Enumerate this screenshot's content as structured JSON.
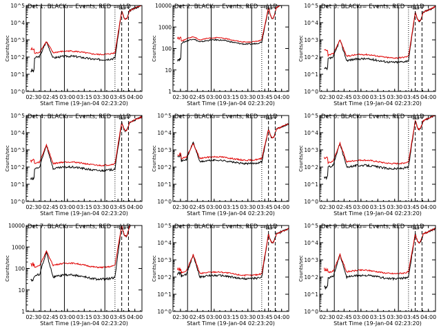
{
  "chart_data": [
    {
      "type": "line",
      "title": "Det 1: BLACK = Events, RED = LLD",
      "xlabel": "Start Time (19-Jan-04 02:23:20)",
      "ylabel": "Counts/sec",
      "x_ticks": [
        "02:30",
        "02:45",
        "03:00",
        "03:15",
        "03:30",
        "03:45",
        "04:00"
      ],
      "y_ticks": [
        "10^0",
        "10^1",
        "10^2",
        "10^3",
        "10^4",
        "10^5"
      ],
      "ylim_log10": [
        0,
        5
      ],
      "markers": [
        "solid",
        "solid",
        "solid",
        "dotted",
        "dashed",
        "dashed"
      ],
      "series": [
        {
          "color": "#000000",
          "shape": {
            "start": 1.2,
            "plateau": 2.05,
            "bump": 2.9,
            "tail": 1.95,
            "flare": 4.7,
            "jitter": 0.06
          }
        },
        {
          "color": "#e00000",
          "shape": {
            "start": 2.45,
            "plateau": 2.3,
            "bump": 2.9,
            "tail": 2.25,
            "flare": 4.7,
            "jitter": 0.04
          }
        }
      ]
    },
    {
      "type": "line",
      "title": "Det 2: BLACK = Events, RED = LLD",
      "xlabel": "Start Time (19-Jan-04 02:23:20)",
      "ylabel": "Counts/sec",
      "x_ticks": [
        "02:30",
        "02:45",
        "03:00",
        "03:15",
        "03:30",
        "03:45",
        "04:00"
      ],
      "y_ticks": [
        "1",
        "10",
        "100",
        "1000",
        "10000"
      ],
      "ylim_log10": [
        0,
        4
      ],
      "markers": [
        "solid",
        "solid",
        "solid",
        "dotted",
        "dashed",
        "dashed"
      ],
      "series": [
        {
          "color": "#000000",
          "shape": {
            "start": 1.5,
            "plateau": 2.35,
            "bump": 2.45,
            "tail": 2.3,
            "flare": 3.9,
            "jitter": 0.03
          }
        },
        {
          "color": "#e00000",
          "shape": {
            "start": 2.5,
            "plateau": 2.45,
            "bump": 2.55,
            "tail": 2.4,
            "flare": 3.9,
            "jitter": 0.02
          }
        }
      ]
    },
    {
      "type": "line",
      "title": "Det 3: BLACK = Events, RED = LLD",
      "xlabel": "Start Time (19-Jan-04 02:23:20)",
      "ylabel": "Counts/sec",
      "x_ticks": [
        "02:30",
        "02:45",
        "03:00",
        "03:15",
        "03:30",
        "03:45",
        "04:00"
      ],
      "y_ticks": [
        "10^0",
        "10^1",
        "10^2",
        "10^3",
        "10^4",
        "10^5"
      ],
      "ylim_log10": [
        0,
        5
      ],
      "markers": [
        "solid",
        "solid",
        "solid",
        "dotted",
        "dashed",
        "dashed"
      ],
      "series": [
        {
          "color": "#000000",
          "shape": {
            "start": 1.3,
            "plateau": 2.0,
            "bump": 3.0,
            "tail": 1.8,
            "flare": 4.6,
            "jitter": 0.06
          }
        },
        {
          "color": "#e00000",
          "shape": {
            "start": 2.35,
            "plateau": 2.2,
            "bump": 3.0,
            "tail": 2.05,
            "flare": 4.6,
            "jitter": 0.04
          }
        }
      ]
    },
    {
      "type": "line",
      "title": "Det 4: BLACK = Events, RED = LLD",
      "xlabel": "Start Time (19-Jan-04 02:23:20)",
      "ylabel": "Counts/sec",
      "x_ticks": [
        "02:30",
        "02:45",
        "03:00",
        "03:15",
        "03:30",
        "03:45",
        "04:00"
      ],
      "y_ticks": [
        "10^0",
        "10^1",
        "10^2",
        "10^3",
        "10^4",
        "10^5"
      ],
      "ylim_log10": [
        0,
        5
      ],
      "markers": [
        "solid",
        "solid",
        "solid",
        "dotted",
        "dashed",
        "dashed"
      ],
      "series": [
        {
          "color": "#000000",
          "shape": {
            "start": 1.3,
            "plateau": 2.0,
            "bump": 3.3,
            "tail": 1.9,
            "flare": 4.6,
            "jitter": 0.06
          }
        },
        {
          "color": "#e00000",
          "shape": {
            "start": 2.4,
            "plateau": 2.3,
            "bump": 3.3,
            "tail": 2.2,
            "flare": 4.6,
            "jitter": 0.04
          }
        }
      ]
    },
    {
      "type": "line",
      "title": "Det 5: BLACK = Events, RED = LLD",
      "xlabel": "Start Time (19-Jan-04 02:23:20)",
      "ylabel": "Counts/sec",
      "x_ticks": [
        "02:30",
        "02:45",
        "03:00",
        "03:15",
        "03:30",
        "03:45",
        "04:00"
      ],
      "y_ticks": [
        "10^0",
        "10^1",
        "10^2",
        "10^3",
        "10^4",
        "10^5"
      ],
      "ylim_log10": [
        0,
        5
      ],
      "markers": [
        "solid",
        "solid",
        "solid",
        "dotted",
        "dashed",
        "dashed"
      ],
      "series": [
        {
          "color": "#000000",
          "shape": {
            "start": 2.7,
            "plateau": 2.45,
            "bump": 3.45,
            "tail": 2.3,
            "flare": 4.2,
            "jitter": 0.05
          }
        },
        {
          "color": "#e00000",
          "shape": {
            "start": 2.75,
            "plateau": 2.6,
            "bump": 3.35,
            "tail": 2.5,
            "flare": 4.2,
            "jitter": 0.04
          }
        }
      ]
    },
    {
      "type": "line",
      "title": "Det 6: BLACK = Events, RED = LLD",
      "xlabel": "Start Time (19-Jan-04 02:23:20)",
      "ylabel": "Counts/sec",
      "x_ticks": [
        "02:30",
        "02:45",
        "03:00",
        "03:15",
        "03:30",
        "03:45",
        "04:00"
      ],
      "y_ticks": [
        "10^0",
        "10^1",
        "10^2",
        "10^3",
        "10^4",
        "10^5"
      ],
      "ylim_log10": [
        0,
        5
      ],
      "markers": [
        "solid",
        "solid",
        "solid",
        "dotted",
        "dashed",
        "dashed"
      ],
      "series": [
        {
          "color": "#000000",
          "shape": {
            "start": 1.4,
            "plateau": 2.1,
            "bump": 3.4,
            "tail": 2.0,
            "flare": 4.7,
            "jitter": 0.06
          }
        },
        {
          "color": "#e00000",
          "shape": {
            "start": 2.5,
            "plateau": 2.35,
            "bump": 3.4,
            "tail": 2.3,
            "flare": 4.7,
            "jitter": 0.04
          }
        }
      ]
    },
    {
      "type": "line",
      "title": "Det 7: BLACK = Events, RED = LLD",
      "xlabel": "Start Time (19-Jan-04 02:23:20)",
      "ylabel": "Counts/sec",
      "x_ticks": [
        "02:30",
        "02:45",
        "03:00",
        "03:15",
        "03:30",
        "03:45",
        "04:00"
      ],
      "y_ticks": [
        "1",
        "10",
        "100",
        "1000",
        "10000"
      ],
      "ylim_log10": [
        0,
        4
      ],
      "markers": [
        "solid",
        "solid",
        "solid",
        "dotted",
        "dashed",
        "dashed"
      ],
      "series": [
        {
          "color": "#000000",
          "shape": {
            "start": 1.5,
            "plateau": 1.75,
            "bump": 2.75,
            "tail": 1.6,
            "flare": 4.0,
            "jitter": 0.05
          }
        },
        {
          "color": "#e00000",
          "shape": {
            "start": 2.2,
            "plateau": 2.15,
            "bump": 2.8,
            "tail": 2.15,
            "flare": 4.0,
            "jitter": 0.03
          }
        }
      ]
    },
    {
      "type": "line",
      "title": "Det 8: BLACK = Events, RED = LLD",
      "xlabel": "Start Time (19-Jan-04 02:23:20)",
      "ylabel": "Counts/sec",
      "x_ticks": [
        "02:30",
        "02:45",
        "03:00",
        "03:15",
        "03:30",
        "03:45",
        "04:00"
      ],
      "y_ticks": [
        "10^0",
        "10^1",
        "10^2",
        "10^3",
        "10^4",
        "10^5"
      ],
      "ylim_log10": [
        0,
        5
      ],
      "markers": [
        "solid",
        "solid",
        "solid",
        "dotted",
        "dashed",
        "dashed"
      ],
      "series": [
        {
          "color": "#000000",
          "shape": {
            "start": 2.2,
            "plateau": 2.15,
            "bump": 3.3,
            "tail": 2.0,
            "flare": 4.5,
            "jitter": 0.06
          }
        },
        {
          "color": "#e00000",
          "shape": {
            "start": 2.45,
            "plateau": 2.35,
            "bump": 3.3,
            "tail": 2.2,
            "flare": 4.5,
            "jitter": 0.04
          }
        }
      ]
    },
    {
      "type": "line",
      "title": "Det 9: BLACK = Events, RED = LLD",
      "xlabel": "Start Time (19-Jan-04 02:23:20)",
      "ylabel": "Counts/sec",
      "x_ticks": [
        "02:30",
        "02:45",
        "03:00",
        "03:15",
        "03:30",
        "03:45",
        "04:00"
      ],
      "y_ticks": [
        "10^0",
        "10^1",
        "10^2",
        "10^3",
        "10^4",
        "10^5"
      ],
      "ylim_log10": [
        0,
        5
      ],
      "markers": [
        "solid",
        "solid",
        "solid",
        "dotted",
        "dashed",
        "dashed"
      ],
      "series": [
        {
          "color": "#000000",
          "shape": {
            "start": 1.4,
            "plateau": 2.05,
            "bump": 3.3,
            "tail": 2.0,
            "flare": 4.5,
            "jitter": 0.06
          }
        },
        {
          "color": "#e00000",
          "shape": {
            "start": 2.45,
            "plateau": 2.35,
            "bump": 3.3,
            "tail": 2.3,
            "flare": 4.5,
            "jitter": 0.04
          }
        }
      ]
    }
  ]
}
